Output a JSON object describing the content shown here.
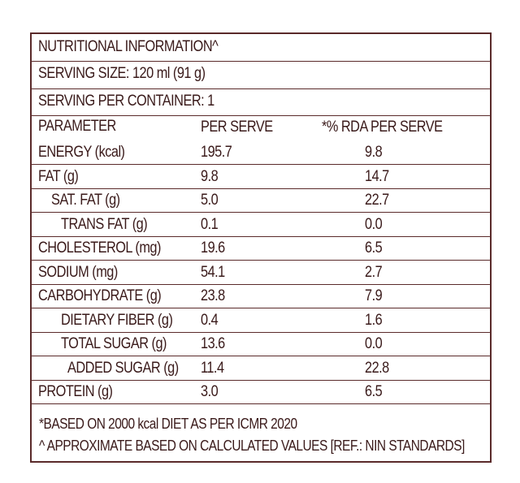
{
  "title": "NUTRITIONAL INFORMATION^",
  "serving_size": "SERVING SIZE: 120 ml (91 g)",
  "serving_per_container": "SERVING PER CONTAINER: 1",
  "table": {
    "headers": [
      "PARAMETER",
      "PER SERVE",
      "*% RDA PER SERVE"
    ],
    "rows": [
      {
        "param": "ENERGY (kcal)",
        "per_serve": "195.7",
        "rda": "9.8",
        "indent": 0
      },
      {
        "param": "FAT (g)",
        "per_serve": "9.8",
        "rda": "14.7",
        "indent": 0
      },
      {
        "param": "SAT. FAT (g)",
        "per_serve": "5.0",
        "rda": "22.7",
        "indent": 1
      },
      {
        "param": "TRANS FAT (g)",
        "per_serve": "0.1",
        "rda": "0.0",
        "indent": 2
      },
      {
        "param": "CHOLESTEROL (mg)",
        "per_serve": "19.6",
        "rda": "6.5",
        "indent": 0
      },
      {
        "param": "SODIUM (mg)",
        "per_serve": "54.1",
        "rda": "2.7",
        "indent": 0
      },
      {
        "param": "CARBOHYDRATE (g)",
        "per_serve": "23.8",
        "rda": "7.9",
        "indent": 0
      },
      {
        "param": "DIETARY FIBER (g)",
        "per_serve": "0.4",
        "rda": "1.6",
        "indent": 2
      },
      {
        "param": "TOTAL SUGAR (g)",
        "per_serve": "13.6",
        "rda": "0.0",
        "indent": 2
      },
      {
        "param": "ADDED SUGAR (g)",
        "per_serve": "11.4",
        "rda": "22.8",
        "indent": 3
      },
      {
        "param": "PROTEIN (g)",
        "per_serve": "3.0",
        "rda": "6.5",
        "indent": 0
      }
    ]
  },
  "footnotes": [
    "*BASED ON 2000 kcal DIET AS PER ICMR 2020",
    "^ APPROXIMATE BASED ON CALCULATED VALUES [REF.: NIN STANDARDS]"
  ]
}
